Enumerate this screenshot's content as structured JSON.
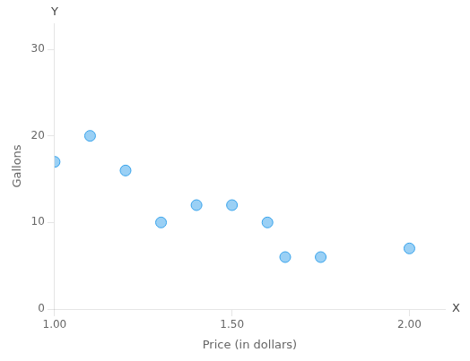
{
  "chart_data": {
    "type": "scatter",
    "x": [
      1.0,
      1.1,
      1.2,
      1.3,
      1.4,
      1.5,
      1.6,
      1.65,
      1.75,
      2.0
    ],
    "values": [
      17,
      20,
      16,
      10,
      12,
      12,
      10,
      6,
      6,
      7
    ],
    "xlabel": "Price (in dollars)",
    "ylabel": "Gallons",
    "xlim": [
      1.0,
      2.1
    ],
    "ylim": [
      0,
      33
    ],
    "xticks": [
      {
        "value": 1.0,
        "label": "1.00"
      },
      {
        "value": 1.5,
        "label": "1.50"
      },
      {
        "value": 2.0,
        "label": "2.00"
      }
    ],
    "yticks": [
      0,
      10,
      20,
      30
    ],
    "grid": false,
    "annotations": [
      {
        "text": "Y",
        "axis": "y"
      },
      {
        "text": "X",
        "axis": "x"
      }
    ]
  }
}
